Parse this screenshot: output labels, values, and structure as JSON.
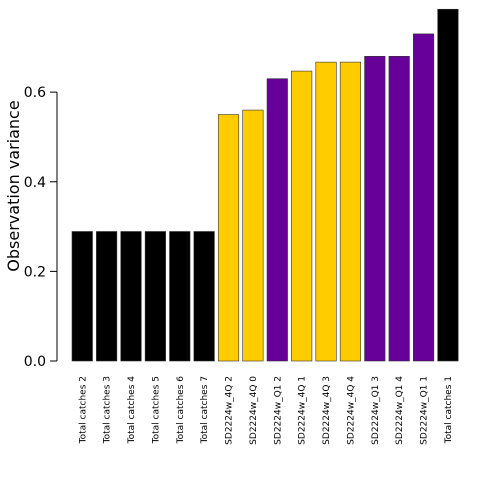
{
  "chart_data": {
    "type": "bar",
    "title": "",
    "xlabel": "",
    "ylabel": "Observation variance",
    "ylim": [
      0,
      0.79
    ],
    "yticks": [
      "0.0",
      "0.2",
      "0.4",
      "0.6"
    ],
    "ytick_values": [
      0,
      0.2,
      0.4,
      0.6
    ],
    "grid": false,
    "colors": {
      "Total catches": "#000000",
      "SD2224w_4Q": "#FFCC00",
      "SD2224w_Q1": "#660099"
    },
    "categories": [
      "Total catches 2",
      "Total catches 3",
      "Total catches 4",
      "Total catches 5",
      "Total catches 6",
      "Total catches 7",
      "SD2224w_4Q 2",
      "SD2224w_4Q 0",
      "SD2224w_Q1 2",
      "SD2224w_4Q 1",
      "SD2224w_4Q 3",
      "SD2224w_4Q 4",
      "SD2224w_Q1 3",
      "SD2224w_Q1 4",
      "SD2224w_Q1 1",
      "Total catches 1"
    ],
    "values": [
      0.289,
      0.289,
      0.289,
      0.289,
      0.289,
      0.289,
      0.55,
      0.56,
      0.63,
      0.647,
      0.667,
      0.667,
      0.68,
      0.68,
      0.73,
      0.785
    ],
    "bar_groups": [
      "Total catches",
      "Total catches",
      "Total catches",
      "Total catches",
      "Total catches",
      "Total catches",
      "SD2224w_4Q",
      "SD2224w_4Q",
      "SD2224w_Q1",
      "SD2224w_4Q",
      "SD2224w_4Q",
      "SD2224w_4Q",
      "SD2224w_Q1",
      "SD2224w_Q1",
      "SD2224w_Q1",
      "Total catches"
    ]
  }
}
